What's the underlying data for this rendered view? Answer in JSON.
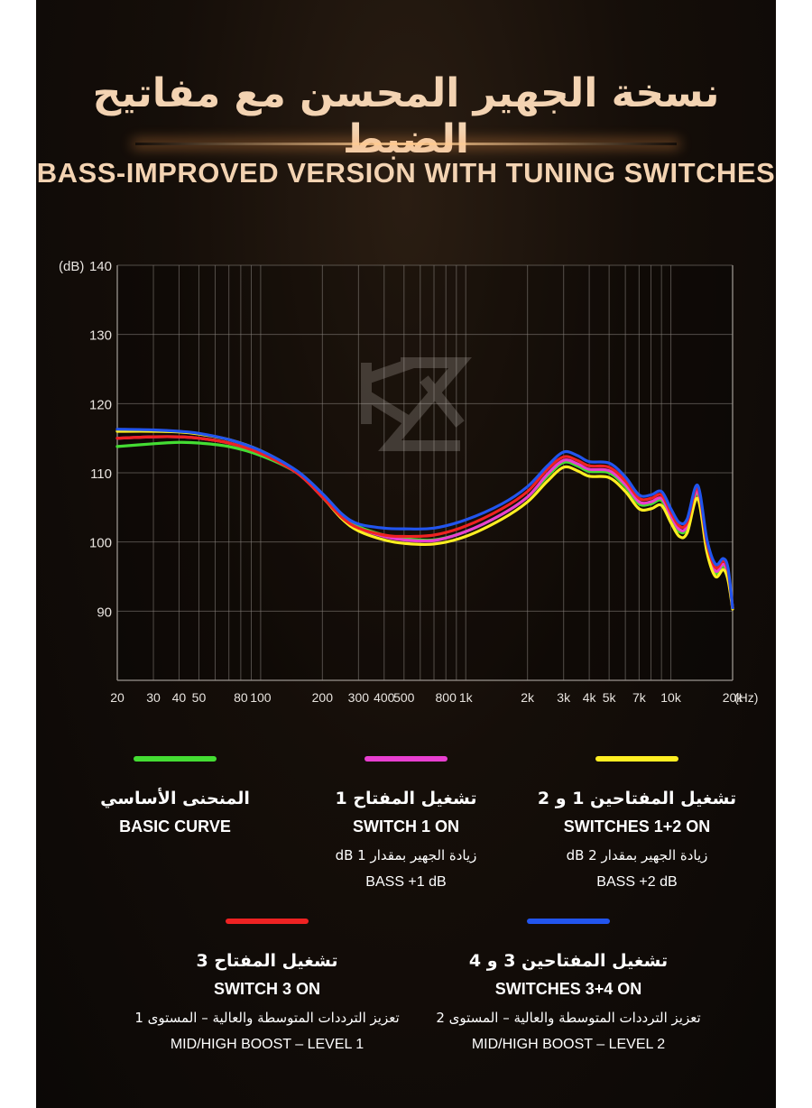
{
  "header": {
    "title_ar": "نسخة الجهير المحسن مع مفاتيح الضبط",
    "title_en": "BASS-IMPROVED VERSION WITH TUNING SWITCHES"
  },
  "chart_data": {
    "type": "line",
    "xscale": "log",
    "x_unit_label": "(Hz)",
    "y_unit_label": "(dB)",
    "xlim": [
      20,
      20000
    ],
    "ylim": [
      80,
      140
    ],
    "x_ticks": [
      {
        "value": 20,
        "label": "20"
      },
      {
        "value": 30,
        "label": "30"
      },
      {
        "value": 40,
        "label": "40"
      },
      {
        "value": 50,
        "label": "50"
      },
      {
        "value": 80,
        "label": "80"
      },
      {
        "value": 100,
        "label": "100"
      },
      {
        "value": 200,
        "label": "200"
      },
      {
        "value": 300,
        "label": "300"
      },
      {
        "value": 400,
        "label": "400"
      },
      {
        "value": 500,
        "label": "500"
      },
      {
        "value": 800,
        "label": "800"
      },
      {
        "value": 1000,
        "label": "1k"
      },
      {
        "value": 2000,
        "label": "2k"
      },
      {
        "value": 3000,
        "label": "3k"
      },
      {
        "value": 4000,
        "label": "4k"
      },
      {
        "value": 5000,
        "label": "5k"
      },
      {
        "value": 7000,
        "label": "7k"
      },
      {
        "value": 10000,
        "label": "10k"
      },
      {
        "value": 20000,
        "label": "20k"
      }
    ],
    "y_ticks": [
      {
        "value": 140,
        "label": "140"
      },
      {
        "value": 130,
        "label": "130"
      },
      {
        "value": 120,
        "label": "120"
      },
      {
        "value": 110,
        "label": "110"
      },
      {
        "value": 100,
        "label": "100"
      },
      {
        "value": 90,
        "label": "90"
      }
    ],
    "grid_x": [
      20,
      30,
      40,
      50,
      60,
      70,
      80,
      90,
      100,
      200,
      300,
      400,
      500,
      600,
      700,
      800,
      900,
      1000,
      2000,
      3000,
      4000,
      5000,
      6000,
      7000,
      8000,
      9000,
      10000,
      20000
    ],
    "grid_y": [
      90,
      100,
      110,
      120,
      130,
      140
    ],
    "watermark": "KZ",
    "series": [
      {
        "name": "BASIC CURVE",
        "color": "#44dd33",
        "points": [
          [
            20,
            113.8
          ],
          [
            30,
            114.2
          ],
          [
            40,
            114.4
          ],
          [
            50,
            114.3
          ],
          [
            70,
            113.8
          ],
          [
            100,
            112.5
          ],
          [
            150,
            110
          ],
          [
            200,
            106.5
          ],
          [
            250,
            103.5
          ],
          [
            300,
            102.2
          ],
          [
            400,
            101
          ],
          [
            500,
            100.5
          ],
          [
            700,
            100.3
          ],
          [
            1000,
            101.5
          ],
          [
            1500,
            104
          ],
          [
            2000,
            106.5
          ],
          [
            2500,
            109.5
          ],
          [
            3000,
            111.5
          ],
          [
            3500,
            111
          ],
          [
            4000,
            110.2
          ],
          [
            5000,
            110
          ],
          [
            6000,
            108
          ],
          [
            7000,
            105.5
          ],
          [
            8000,
            105.5
          ],
          [
            9000,
            106
          ],
          [
            10000,
            103.5
          ],
          [
            11000,
            101.5
          ],
          [
            12000,
            102
          ],
          [
            13500,
            107
          ],
          [
            15000,
            99
          ],
          [
            16500,
            95.5
          ],
          [
            18000,
            96.5
          ],
          [
            19000,
            95
          ],
          [
            20000,
            90.5
          ]
        ]
      },
      {
        "name": "SWITCH 1 ON",
        "color": "#e83fd0",
        "points": [
          [
            20,
            115
          ],
          [
            30,
            115.2
          ],
          [
            40,
            115.2
          ],
          [
            50,
            115
          ],
          [
            70,
            114.3
          ],
          [
            100,
            112.8
          ],
          [
            150,
            110
          ],
          [
            200,
            106.5
          ],
          [
            250,
            103.5
          ],
          [
            300,
            102
          ],
          [
            400,
            100.8
          ],
          [
            500,
            100.3
          ],
          [
            700,
            100.2
          ],
          [
            1000,
            101.5
          ],
          [
            1500,
            104
          ],
          [
            2000,
            106.5
          ],
          [
            2500,
            109.8
          ],
          [
            3000,
            111.8
          ],
          [
            3500,
            111.3
          ],
          [
            4000,
            110.5
          ],
          [
            5000,
            110.3
          ],
          [
            6000,
            108.3
          ],
          [
            7000,
            105.8
          ],
          [
            8000,
            105.8
          ],
          [
            9000,
            106.3
          ],
          [
            10000,
            103.8
          ],
          [
            11000,
            101.8
          ],
          [
            12000,
            102.3
          ],
          [
            13500,
            107.3
          ],
          [
            15000,
            99.3
          ],
          [
            16500,
            95.8
          ],
          [
            18000,
            96.8
          ],
          [
            19000,
            95.3
          ],
          [
            20000,
            90.5
          ]
        ]
      },
      {
        "name": "SWITCHES 1+2 ON",
        "color": "#ffee22",
        "points": [
          [
            20,
            116
          ],
          [
            30,
            116
          ],
          [
            40,
            115.9
          ],
          [
            50,
            115.6
          ],
          [
            70,
            114.8
          ],
          [
            100,
            113.2
          ],
          [
            150,
            110.2
          ],
          [
            200,
            106.5
          ],
          [
            250,
            103.3
          ],
          [
            300,
            101.6
          ],
          [
            400,
            100.3
          ],
          [
            500,
            99.8
          ],
          [
            700,
            99.7
          ],
          [
            1000,
            100.8
          ],
          [
            1500,
            103.3
          ],
          [
            2000,
            105.8
          ],
          [
            2500,
            108.8
          ],
          [
            3000,
            110.8
          ],
          [
            3500,
            110.3
          ],
          [
            4000,
            109.5
          ],
          [
            5000,
            109.3
          ],
          [
            6000,
            107.3
          ],
          [
            7000,
            104.8
          ],
          [
            8000,
            104.8
          ],
          [
            9000,
            105.3
          ],
          [
            10000,
            102.8
          ],
          [
            11000,
            100.8
          ],
          [
            12000,
            101.3
          ],
          [
            13500,
            106.3
          ],
          [
            15000,
            98.5
          ],
          [
            16500,
            95
          ],
          [
            18000,
            96
          ],
          [
            19000,
            94.5
          ],
          [
            20000,
            90.3
          ]
        ]
      },
      {
        "name": "SWITCH 3 ON",
        "color": "#ee2222",
        "points": [
          [
            20,
            115
          ],
          [
            30,
            115.2
          ],
          [
            40,
            115.2
          ],
          [
            50,
            115
          ],
          [
            70,
            114.3
          ],
          [
            100,
            112.8
          ],
          [
            150,
            110
          ],
          [
            200,
            106.5
          ],
          [
            250,
            103.5
          ],
          [
            300,
            102
          ],
          [
            400,
            101
          ],
          [
            500,
            100.8
          ],
          [
            700,
            101
          ],
          [
            1000,
            102.3
          ],
          [
            1500,
            104.8
          ],
          [
            2000,
            107.3
          ],
          [
            2500,
            110.5
          ],
          [
            3000,
            112.3
          ],
          [
            3500,
            111.8
          ],
          [
            4000,
            111
          ],
          [
            5000,
            110.8
          ],
          [
            6000,
            108.8
          ],
          [
            7000,
            106.3
          ],
          [
            8000,
            106.3
          ],
          [
            9000,
            106.8
          ],
          [
            10000,
            104.3
          ],
          [
            11000,
            102.3
          ],
          [
            12000,
            102.8
          ],
          [
            13500,
            107.8
          ],
          [
            15000,
            99.8
          ],
          [
            16500,
            96.3
          ],
          [
            18000,
            97.3
          ],
          [
            19000,
            95.8
          ],
          [
            20000,
            90.5
          ]
        ]
      },
      {
        "name": "SWITCHES 3+4 ON",
        "color": "#2255ee",
        "points": [
          [
            20,
            116.3
          ],
          [
            30,
            116.2
          ],
          [
            40,
            116
          ],
          [
            50,
            115.7
          ],
          [
            70,
            114.8
          ],
          [
            100,
            113.2
          ],
          [
            150,
            110.3
          ],
          [
            200,
            107
          ],
          [
            250,
            104
          ],
          [
            300,
            102.6
          ],
          [
            400,
            102
          ],
          [
            500,
            101.9
          ],
          [
            700,
            102
          ],
          [
            1000,
            103.2
          ],
          [
            1500,
            105.5
          ],
          [
            2000,
            108
          ],
          [
            2500,
            111
          ],
          [
            3000,
            113
          ],
          [
            3500,
            112.5
          ],
          [
            4000,
            111.6
          ],
          [
            5000,
            111.4
          ],
          [
            6000,
            109.4
          ],
          [
            7000,
            106.8
          ],
          [
            8000,
            106.8
          ],
          [
            9000,
            107.3
          ],
          [
            10000,
            104.8
          ],
          [
            11000,
            102.8
          ],
          [
            12000,
            103.3
          ],
          [
            13500,
            108.2
          ],
          [
            15000,
            100.3
          ],
          [
            16500,
            96.8
          ],
          [
            18000,
            97.6
          ],
          [
            19000,
            96.2
          ],
          [
            20000,
            90.5
          ]
        ]
      }
    ]
  },
  "legend": [
    {
      "color": "#44dd33",
      "title_ar": "المنحنى الأساسي",
      "title_en": "BASIC CURVE",
      "desc_ar": "",
      "desc_en": ""
    },
    {
      "color": "#e83fd0",
      "title_ar": "تشغيل المفتاح 1",
      "title_en": "SWITCH 1 ON",
      "desc_ar": "زيادة الجهير بمقدار 1 dB",
      "desc_en": "BASS +1 dB"
    },
    {
      "color": "#ffee22",
      "title_ar": "تشغيل المفتاحين 1 و 2",
      "title_en": "SWITCHES 1+2 ON",
      "desc_ar": "زيادة الجهير بمقدار 2 dB",
      "desc_en": "BASS +2 dB"
    },
    {
      "color": "#ee2222",
      "title_ar": "تشغيل المفتاح 3",
      "title_en": "SWITCH 3 ON",
      "desc_ar": "تعزيز الترددات المتوسطة والعالية – المستوى 1",
      "desc_en": "MID/HIGH BOOST – LEVEL 1"
    },
    {
      "color": "#2255ee",
      "title_ar": "تشغيل المفتاحين 3 و 4",
      "title_en": "SWITCHES 3+4 ON",
      "desc_ar": "تعزيز الترددات المتوسطة والعالية – المستوى 2",
      "desc_en": "MID/HIGH BOOST – LEVEL 2"
    }
  ]
}
